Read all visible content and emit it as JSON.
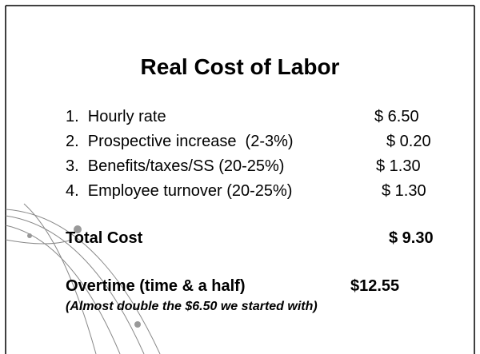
{
  "slide": {
    "title": "Real Cost of Labor",
    "items": [
      {
        "label": "1.  Hourly rate",
        "amount": "$ 6.50"
      },
      {
        "label": "2.  Prospective increase  (2-3%)",
        "amount": "$ 0.20"
      },
      {
        "label": "3.  Benefits/taxes/SS (20-25%)",
        "amount": "$ 1.30"
      },
      {
        "label": "4.  Employee turnover (20-25%)",
        "amount": "$ 1.30"
      }
    ],
    "total": {
      "label": "Total Cost",
      "amount": "$ 9.30"
    },
    "overtime": {
      "label": "Overtime (time & a half)",
      "amount": "$12.55"
    },
    "note": "(Almost double the $6.50 we started with)"
  }
}
